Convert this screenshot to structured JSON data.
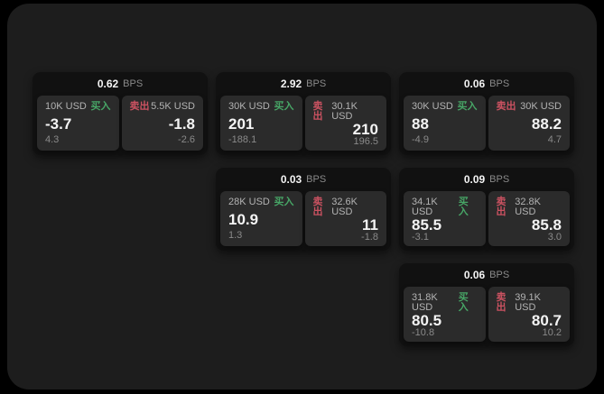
{
  "colors": {
    "page_bg": "#000000",
    "panel_bg": "#1d1d1d",
    "card_bg": "#111111",
    "tile_bg": "#2b2b2b",
    "text_primary": "#f4f4f4",
    "text_secondary": "#8a8a8a",
    "text_amount": "#b3b3b3",
    "buy_green": "#47a566",
    "sell_red": "#cb5261"
  },
  "labels": {
    "bps_suffix": "BPS",
    "buy": "买入",
    "sell": "卖出"
  },
  "cards": [
    {
      "bps": "0.62",
      "col": 1,
      "row": 1,
      "buy": {
        "amount": "10K USD",
        "price": "-3.7",
        "delta": "4.3"
      },
      "sell": {
        "amount": "5.5K USD",
        "price": "-1.8",
        "delta": "-2.6"
      }
    },
    {
      "bps": "2.92",
      "col": 2,
      "row": 1,
      "buy": {
        "amount": "30K USD",
        "price": "201",
        "delta": "-188.1"
      },
      "sell": {
        "amount": "30.1K USD",
        "price": "210",
        "delta": "196.5"
      }
    },
    {
      "bps": "0.06",
      "col": 3,
      "row": 1,
      "buy": {
        "amount": "30K USD",
        "price": "88",
        "delta": "-4.9"
      },
      "sell": {
        "amount": "30K USD",
        "price": "88.2",
        "delta": "4.7"
      }
    },
    {
      "bps": "0.03",
      "col": 2,
      "row": 2,
      "buy": {
        "amount": "28K USD",
        "price": "10.9",
        "delta": "1.3"
      },
      "sell": {
        "amount": "32.6K USD",
        "price": "11",
        "delta": "-1.8"
      }
    },
    {
      "bps": "0.09",
      "col": 3,
      "row": 2,
      "buy": {
        "amount": "34.1K USD",
        "price": "85.5",
        "delta": "-3.1"
      },
      "sell": {
        "amount": "32.8K USD",
        "price": "85.8",
        "delta": "3.0"
      }
    },
    {
      "bps": "0.06",
      "col": 3,
      "row": 3,
      "buy": {
        "amount": "31.8K USD",
        "price": "80.5",
        "delta": "-10.8"
      },
      "sell": {
        "amount": "39.1K USD",
        "price": "80.7",
        "delta": "10.2"
      }
    }
  ]
}
